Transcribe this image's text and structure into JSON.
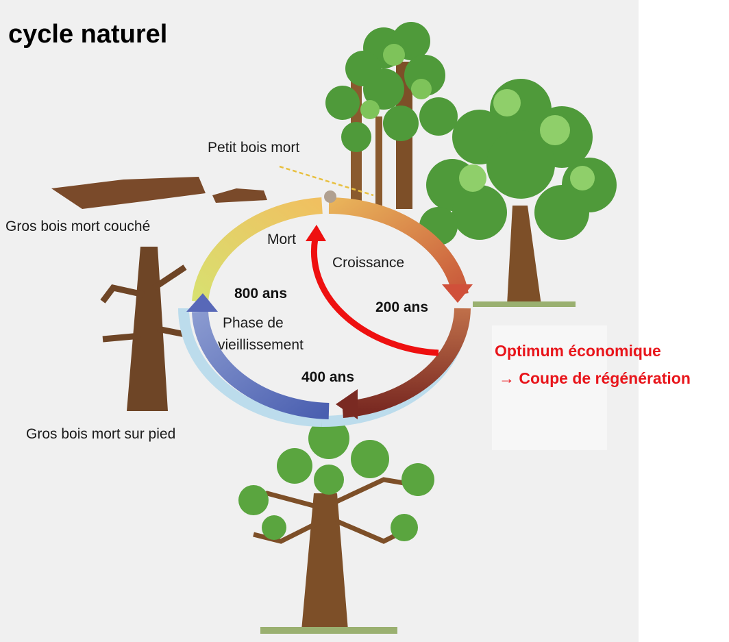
{
  "title": "cycle naturel",
  "labels": {
    "petit_bois_mort": "Petit bois mort",
    "gros_bois_mort_couche": "Gros bois mort couché",
    "gros_bois_mort_sur_pied": "Gros bois mort sur pied",
    "mort": "Mort",
    "croissance": "Croissance",
    "phase_de_vieillissement": [
      "Phase de",
      "vieillissement"
    ]
  },
  "durations": [
    "200 ans",
    "400 ans",
    "800 ans"
  ],
  "annotation": [
    "Optimum économique",
    "→ Coupe de régénération"
  ]
}
